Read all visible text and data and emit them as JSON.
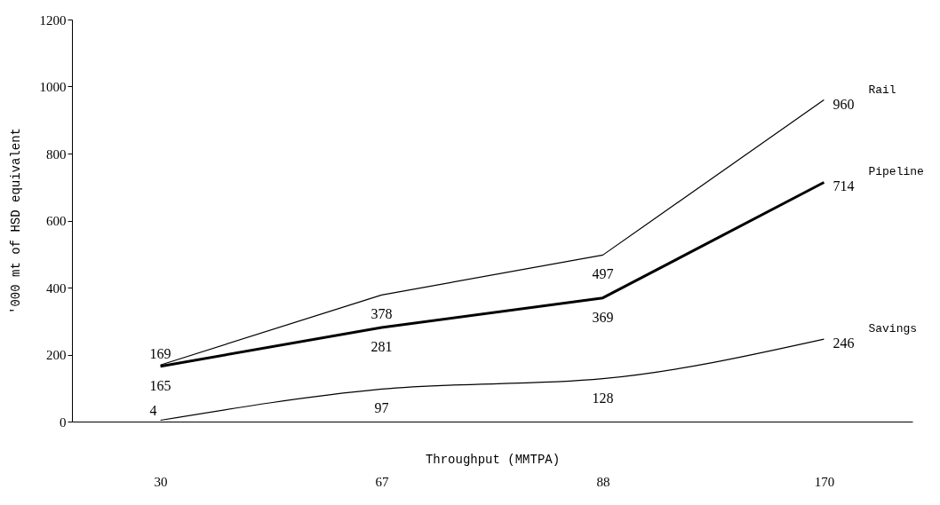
{
  "chart_data": {
    "type": "line",
    "xlabel": "Throughput (MMTPA)",
    "ylabel": "'000 mt of HSD equivalent",
    "categories": [
      "30",
      "67",
      "88",
      "170"
    ],
    "series": [
      {
        "name": "Rail",
        "color": "#000000",
        "values": [
          169,
          378,
          497,
          960
        ]
      },
      {
        "name": "Pipeline",
        "color": "#000000",
        "values": [
          165,
          281,
          369,
          714
        ]
      },
      {
        "name": "Savings",
        "color": "#000000",
        "values": [
          4,
          97,
          128,
          246
        ]
      }
    ],
    "ylim": [
      0,
      1200
    ],
    "yticks": [
      0,
      200,
      400,
      600,
      800,
      1000,
      1200
    ],
    "data_labels": true,
    "grid": false,
    "marker": "none",
    "line_style": "solid"
  }
}
